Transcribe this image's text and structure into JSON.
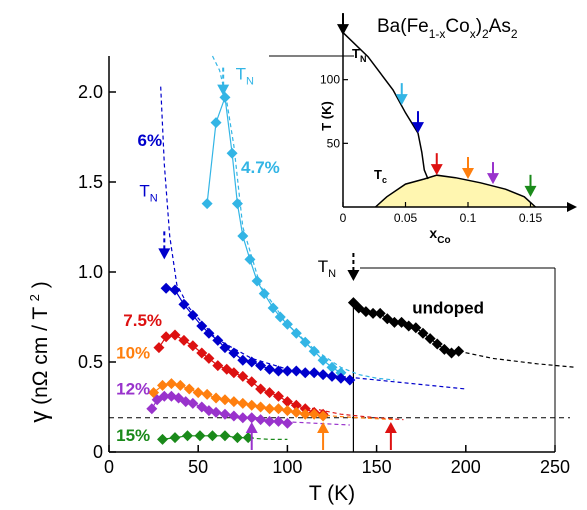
{
  "chart_data": [
    {
      "type": "scatter",
      "title": "",
      "xlabel": "T (K)",
      "ylabel_symbol": "γ",
      "ylabel_units": "(nΩ cm / T",
      "ylabel_exp": "2",
      "ylabel_close": ")",
      "xlim": [
        0,
        250
      ],
      "ylim": [
        0,
        2.2
      ],
      "x_ticks": [
        0,
        50,
        100,
        150,
        200,
        250
      ],
      "y_ticks": [
        0,
        0.5,
        1.0,
        1.5,
        2.0
      ],
      "x_tick_labels": [
        "0",
        "50",
        "100",
        "150",
        "200",
        "250"
      ],
      "y_tick_labels": [
        "0",
        "0.5",
        "1.0",
        "1.5",
        "2.0"
      ],
      "reference_line_y": 0.19,
      "transition_line_x": 137,
      "series": [
        {
          "name": "undoped",
          "color": "#000000",
          "points": [
            [
              137,
              0.83
            ],
            [
              140,
              0.8
            ],
            [
              144,
              0.78
            ],
            [
              148,
              0.77
            ],
            [
              152,
              0.77
            ],
            [
              156,
              0.74
            ],
            [
              160,
              0.72
            ],
            [
              164,
              0.72
            ],
            [
              168,
              0.7
            ],
            [
              172,
              0.69
            ],
            [
              176,
              0.66
            ],
            [
              180,
              0.63
            ],
            [
              184,
              0.6
            ],
            [
              188,
              0.57
            ],
            [
              192,
              0.55
            ],
            [
              196,
              0.56
            ]
          ],
          "fit": [
            [
              196,
              0.56
            ],
            [
              215,
              0.52
            ],
            [
              240,
              0.49
            ],
            [
              262,
              0.47
            ]
          ]
        },
        {
          "name": "4.7%",
          "color": "#33b5e5",
          "points": [
            [
              55,
              1.38
            ],
            [
              60,
              1.83
            ],
            [
              65,
              1.97
            ],
            [
              69,
              1.66
            ],
            [
              72,
              1.38
            ],
            [
              75,
              1.2
            ],
            [
              79,
              1.07
            ],
            [
              83,
              0.95
            ],
            [
              87,
              0.88
            ],
            [
              92,
              0.8
            ],
            [
              96,
              0.75
            ],
            [
              100,
              0.71
            ],
            [
              105,
              0.66
            ],
            [
              110,
              0.61
            ],
            [
              115,
              0.56
            ],
            [
              120,
              0.51
            ],
            [
              125,
              0.47
            ],
            [
              130,
              0.44
            ]
          ],
          "fit": [
            [
              58,
              2.2
            ],
            [
              62,
              2.12
            ],
            [
              66,
              1.95
            ],
            [
              70,
              1.7
            ],
            [
              75,
              1.25
            ],
            [
              85,
              0.92
            ],
            [
              100,
              0.71
            ],
            [
              115,
              0.57
            ],
            [
              130,
              0.47
            ],
            [
              140,
              0.43
            ],
            [
              150,
              0.41
            ],
            [
              160,
              0.4
            ]
          ]
        },
        {
          "name": "6%",
          "color": "#0000cc",
          "points": [
            [
              32,
              0.91
            ],
            [
              37,
              0.9
            ],
            [
              42,
              0.82
            ],
            [
              47,
              0.76
            ],
            [
              52,
              0.7
            ],
            [
              56,
              0.66
            ],
            [
              61,
              0.62
            ],
            [
              65,
              0.58
            ],
            [
              70,
              0.55
            ],
            [
              75,
              0.51
            ],
            [
              80,
              0.5
            ],
            [
              85,
              0.48
            ],
            [
              90,
              0.46
            ],
            [
              95,
              0.45
            ],
            [
              100,
              0.45
            ],
            [
              105,
              0.45
            ],
            [
              110,
              0.44
            ],
            [
              115,
              0.44
            ],
            [
              120,
              0.43
            ],
            [
              125,
              0.42
            ],
            [
              130,
              0.41
            ],
            [
              135,
              0.4
            ]
          ],
          "fit": [
            [
              29,
              2.03
            ],
            [
              31,
              1.6
            ],
            [
              34,
              1.2
            ],
            [
              38,
              0.93
            ],
            [
              45,
              0.8
            ],
            [
              60,
              0.63
            ],
            [
              80,
              0.52
            ],
            [
              100,
              0.46
            ],
            [
              120,
              0.43
            ],
            [
              140,
              0.41
            ],
            [
              160,
              0.39
            ],
            [
              180,
              0.37
            ],
            [
              200,
              0.35
            ]
          ]
        },
        {
          "name": "7.5%",
          "color": "#dd1111",
          "points": [
            [
              28,
              0.58
            ],
            [
              32,
              0.64
            ],
            [
              37,
              0.65
            ],
            [
              42,
              0.62
            ],
            [
              47,
              0.59
            ],
            [
              52,
              0.55
            ],
            [
              56,
              0.52
            ],
            [
              61,
              0.48
            ],
            [
              66,
              0.46
            ],
            [
              70,
              0.44
            ],
            [
              75,
              0.42
            ],
            [
              80,
              0.39
            ],
            [
              85,
              0.35
            ],
            [
              90,
              0.33
            ],
            [
              95,
              0.31
            ],
            [
              100,
              0.28
            ],
            [
              105,
              0.26
            ],
            [
              110,
              0.24
            ],
            [
              115,
              0.22
            ],
            [
              120,
              0.21
            ]
          ],
          "fit": [
            [
              110,
              0.25
            ],
            [
              130,
              0.21
            ],
            [
              150,
              0.19
            ],
            [
              165,
              0.18
            ]
          ]
        },
        {
          "name": "10%",
          "color": "#ff7f0e",
          "points": [
            [
              25,
              0.33
            ],
            [
              30,
              0.37
            ],
            [
              35,
              0.38
            ],
            [
              40,
              0.37
            ],
            [
              45,
              0.35
            ],
            [
              50,
              0.33
            ],
            [
              55,
              0.32
            ],
            [
              60,
              0.3
            ],
            [
              65,
              0.29
            ],
            [
              70,
              0.28
            ],
            [
              75,
              0.27
            ],
            [
              80,
              0.26
            ],
            [
              85,
              0.25
            ],
            [
              90,
              0.24
            ],
            [
              95,
              0.24
            ],
            [
              100,
              0.23
            ],
            [
              105,
              0.22
            ],
            [
              110,
              0.21
            ],
            [
              115,
              0.21
            ],
            [
              120,
              0.2
            ]
          ],
          "fit": [
            [
              110,
              0.22
            ],
            [
              125,
              0.2
            ],
            [
              140,
              0.19
            ],
            [
              160,
              0.18
            ]
          ]
        },
        {
          "name": "12%",
          "color": "#9933cc",
          "points": [
            [
              24,
              0.24
            ],
            [
              27,
              0.29
            ],
            [
              31,
              0.31
            ],
            [
              35,
              0.31
            ],
            [
              39,
              0.3
            ],
            [
              43,
              0.28
            ],
            [
              47,
              0.27
            ],
            [
              52,
              0.25
            ],
            [
              56,
              0.23
            ],
            [
              60,
              0.22
            ],
            [
              65,
              0.21
            ],
            [
              70,
              0.2
            ],
            [
              75,
              0.19
            ],
            [
              80,
              0.19
            ],
            [
              85,
              0.18
            ],
            [
              90,
              0.17
            ],
            [
              95,
              0.17
            ],
            [
              100,
              0.16
            ]
          ],
          "fit": [
            [
              95,
              0.17
            ],
            [
              115,
              0.16
            ],
            [
              135,
              0.15
            ]
          ]
        },
        {
          "name": "15%",
          "color": "#1a8a1a",
          "points": [
            [
              30,
              0.07
            ],
            [
              37,
              0.08
            ],
            [
              44,
              0.09
            ],
            [
              51,
              0.09
            ],
            [
              58,
              0.09
            ],
            [
              65,
              0.09
            ],
            [
              72,
              0.08
            ],
            [
              78,
              0.08
            ]
          ],
          "fit": [
            [
              75,
              0.08
            ],
            [
              90,
              0.07
            ],
            [
              100,
              0.07
            ]
          ]
        }
      ],
      "series_labels": [
        {
          "text": "undoped",
          "color": "#000000",
          "x": 170,
          "y": 0.77
        },
        {
          "text": "4.7%",
          "color": "#33b5e5",
          "x": 74,
          "y": 1.55
        },
        {
          "text": "6%",
          "color": "#0000cc",
          "x": 16,
          "y": 1.7
        },
        {
          "text": "7.5%",
          "color": "#dd1111",
          "x": 8,
          "y": 0.7
        },
        {
          "text": "10%",
          "color": "#ff7f0e",
          "x": 4,
          "y": 0.52
        },
        {
          "text": "12%",
          "color": "#9933cc",
          "x": 4,
          "y": 0.32
        },
        {
          "text": "15%",
          "color": "#1a8a1a",
          "x": 4,
          "y": 0.06
        }
      ],
      "tn_markers": [
        {
          "label": "T",
          "sub": "N",
          "color": "#33b5e5",
          "x": 64,
          "y_tip": 1.98,
          "label_x": 71,
          "label_y": 2.07
        },
        {
          "label": "T",
          "sub": "N",
          "color": "#0000cc",
          "x": 31,
          "y_tip": 1.07,
          "label_x": 17,
          "label_y": 1.42
        },
        {
          "label": "T",
          "sub": "N",
          "color": "#000000",
          "x": 137,
          "y_tip": 0.95,
          "label_x": 117,
          "label_y": 1.0
        }
      ],
      "arrows": [
        {
          "color": "#9933cc",
          "x": 80
        },
        {
          "color": "#ff7f0e",
          "x": 120
        },
        {
          "color": "#dd1111",
          "x": 158
        }
      ]
    },
    {
      "type": "line",
      "title_prefix": "Ba(Fe",
      "title_sub1": "1-x",
      "title_mid": "Co",
      "title_sub2": "x",
      "title_mid2": ")",
      "title_sub3": "2",
      "title_suffix": "As",
      "title_sub4": "2",
      "xlabel": "x",
      "xlabel_sub": "Co",
      "ylabel": "T (K)",
      "xlim": [
        0,
        0.18
      ],
      "ylim": [
        0,
        150
      ],
      "x_ticks": [
        0,
        0.05,
        0.1,
        0.15
      ],
      "y_ticks": [
        50,
        100
      ],
      "x_tick_labels": [
        "0",
        "0.05",
        "0.1",
        "0.15"
      ],
      "y_tick_labels": [
        "50",
        "100"
      ],
      "tn_label": "T",
      "tn_sub": "N",
      "tc_label": "T",
      "tc_sub": "c",
      "tn_line": [
        [
          0,
          137
        ],
        [
          0.02,
          118
        ],
        [
          0.04,
          92
        ],
        [
          0.05,
          74
        ],
        [
          0.06,
          58
        ],
        [
          0.063,
          43
        ],
        [
          0.065,
          29
        ],
        [
          0.068,
          22
        ]
      ],
      "tc_dome": [
        [
          0.026,
          0
        ],
        [
          0.035,
          8
        ],
        [
          0.05,
          18
        ],
        [
          0.065,
          22
        ],
        [
          0.075,
          25
        ],
        [
          0.09,
          23
        ],
        [
          0.11,
          19
        ],
        [
          0.13,
          14
        ],
        [
          0.145,
          8
        ],
        [
          0.154,
          0
        ]
      ],
      "arrows": [
        {
          "color": "#000000",
          "x": 0.0,
          "y_tip": 135
        },
        {
          "color": "#33b5e5",
          "x": 0.047,
          "y_tip": 80
        },
        {
          "color": "#0000cc",
          "x": 0.06,
          "y_tip": 58
        },
        {
          "color": "#dd1111",
          "x": 0.075,
          "y_tip": 25
        },
        {
          "color": "#ff7f0e",
          "x": 0.1,
          "y_tip": 22
        },
        {
          "color": "#9933cc",
          "x": 0.12,
          "y_tip": 18
        },
        {
          "color": "#1a8a1a",
          "x": 0.15,
          "y_tip": 8
        }
      ]
    }
  ]
}
